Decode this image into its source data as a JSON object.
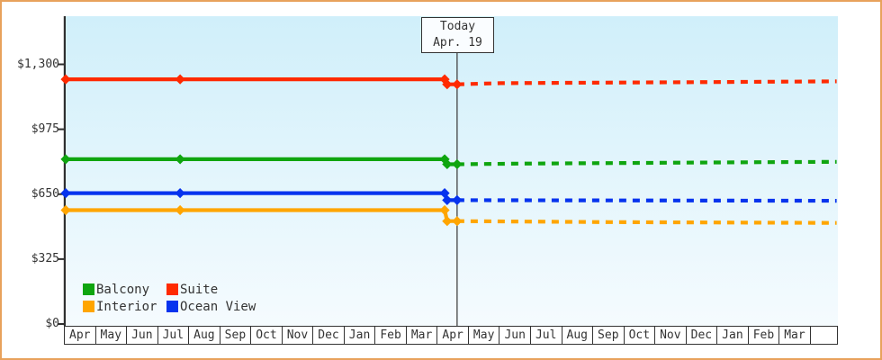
{
  "frame": {
    "border_color": "#E8A25C",
    "background": "#FFFFFF",
    "plot_bg_top": "#D0EFFA",
    "plot_bg_bottom": "#F5FBFE",
    "axis_color": "#2F2F2F",
    "today_line_color": "#444444"
  },
  "chart_data": {
    "type": "line",
    "title": "",
    "ylim": [
      0,
      1300
    ],
    "grid": false,
    "y_axis": {
      "tick_labels": [
        "$0",
        "$325",
        "$650",
        "$975",
        "$1,300"
      ],
      "tick_values": [
        0,
        325,
        650,
        975,
        1300
      ]
    },
    "x_axis": {
      "month_labels": [
        "Apr",
        "May",
        "Jun",
        "Jul",
        "Aug",
        "Sep",
        "Oct",
        "Nov",
        "Dec",
        "Jan",
        "Feb",
        "Mar",
        "Apr",
        "May",
        "Jun",
        "Jul",
        "Aug",
        "Sep",
        "Oct",
        "Nov",
        "Dec",
        "Jan",
        "Feb",
        "Mar",
        ""
      ]
    },
    "today": {
      "label_line1": "Today",
      "label_line2": "Apr. 19",
      "month_index": 12.59
    },
    "legend": {
      "position": "bottom-left",
      "items": [
        "Balcony",
        "Suite",
        "Interior",
        "Ocean View"
      ]
    },
    "series": [
      {
        "name": "Balcony",
        "color": "#0FA50F",
        "history": [
          [
            0,
            825
          ],
          [
            3.68,
            825
          ],
          [
            12.19,
            825
          ],
          [
            12.27,
            800
          ],
          [
            12.59,
            800
          ]
        ],
        "forecast": [
          [
            12.59,
            800
          ],
          [
            14.6,
            803
          ],
          [
            22.4,
            810
          ],
          [
            24.8,
            812
          ]
        ]
      },
      {
        "name": "Suite",
        "color": "#FF2A00",
        "history": [
          [
            0,
            1225
          ],
          [
            3.68,
            1225
          ],
          [
            12.19,
            1225
          ],
          [
            12.27,
            1200
          ],
          [
            12.59,
            1200
          ]
        ],
        "forecast": [
          [
            12.59,
            1200
          ],
          [
            14.0,
            1206
          ],
          [
            20.2,
            1211
          ],
          [
            24.8,
            1215
          ]
        ]
      },
      {
        "name": "Interior",
        "color": "#FFA500",
        "history": [
          [
            0,
            570
          ],
          [
            3.68,
            570
          ],
          [
            12.19,
            570
          ],
          [
            12.27,
            515
          ],
          [
            12.59,
            515
          ]
        ],
        "forecast": [
          [
            12.59,
            515
          ],
          [
            17.5,
            510
          ],
          [
            24.8,
            506
          ]
        ]
      },
      {
        "name": "Ocean View",
        "color": "#0633EE",
        "history": [
          [
            0,
            655
          ],
          [
            3.68,
            655
          ],
          [
            12.19,
            655
          ],
          [
            12.27,
            620
          ],
          [
            12.59,
            620
          ]
        ],
        "forecast": [
          [
            12.59,
            620
          ],
          [
            24.8,
            617
          ]
        ]
      }
    ]
  }
}
